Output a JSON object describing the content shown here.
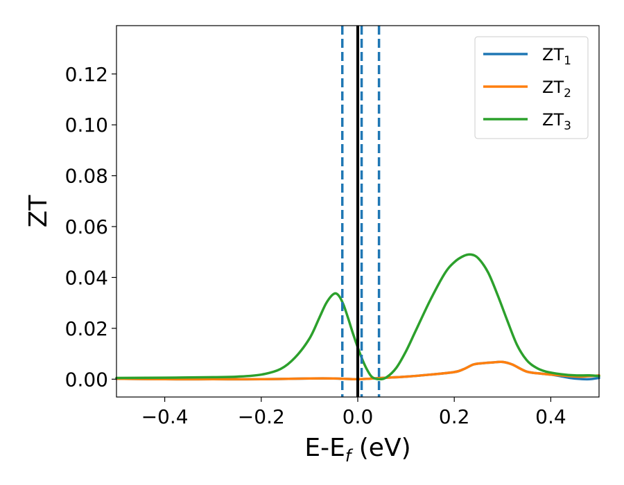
{
  "chart_data": {
    "type": "line",
    "xlabel": "E-E",
    "xlabel_sub": "f",
    "xlabel_unit": " (eV)",
    "ylabel": "ZT",
    "xlim": [
      -0.5,
      0.5
    ],
    "ylim": [
      -0.007,
      0.139
    ],
    "xticks": [
      -0.4,
      -0.2,
      0.0,
      0.2,
      0.4
    ],
    "xtick_labels": [
      "−0.4",
      "−0.2",
      "0.0",
      "0.2",
      "0.4"
    ],
    "yticks": [
      0.0,
      0.02,
      0.04,
      0.06,
      0.08,
      0.1,
      0.12
    ],
    "ytick_labels": [
      "0.00",
      "0.02",
      "0.04",
      "0.06",
      "0.08",
      "0.10",
      "0.12"
    ],
    "legend_position": "top-right",
    "grid": false,
    "vertical_lines": [
      {
        "x": 0.0,
        "style": "solid",
        "color": "#000000"
      },
      {
        "x": -0.032,
        "style": "dashed",
        "color": "#1f77b4"
      },
      {
        "x": 0.008,
        "style": "dashed",
        "color": "#1f77b4"
      },
      {
        "x": 0.044,
        "style": "dashed",
        "color": "#1f77b4"
      }
    ],
    "series": [
      {
        "name": "ZT",
        "sub": "1",
        "color": "#1f77b4",
        "x": [
          -0.5,
          -0.4,
          -0.3,
          -0.2,
          -0.1,
          -0.05,
          0.0,
          0.05,
          0.1,
          0.15,
          0.2,
          0.22,
          0.24,
          0.26,
          0.28,
          0.3,
          0.32,
          0.35,
          0.38,
          0.4,
          0.42,
          0.44,
          0.46,
          0.48,
          0.5
        ],
        "y": [
          0.0002,
          0.0,
          0.0,
          0.0,
          0.0003,
          0.0003,
          0.0,
          0.0005,
          0.001,
          0.0018,
          0.0028,
          0.004,
          0.0058,
          0.0063,
          0.0066,
          0.0068,
          0.0058,
          0.003,
          0.0022,
          0.0018,
          0.0012,
          0.0005,
          0.0001,
          0.0,
          0.0005
        ]
      },
      {
        "name": "ZT",
        "sub": "2",
        "color": "#ff7f0e",
        "x": [
          -0.5,
          -0.4,
          -0.3,
          -0.2,
          -0.1,
          -0.05,
          0.0,
          0.05,
          0.1,
          0.15,
          0.2,
          0.22,
          0.24,
          0.26,
          0.28,
          0.3,
          0.32,
          0.35,
          0.38,
          0.4,
          0.42,
          0.44,
          0.46,
          0.48,
          0.5
        ],
        "y": [
          0.0002,
          0.0,
          0.0,
          0.0,
          0.0003,
          0.0003,
          0.0,
          0.0005,
          0.001,
          0.0018,
          0.0028,
          0.004,
          0.0058,
          0.0063,
          0.0066,
          0.0068,
          0.0058,
          0.003,
          0.0022,
          0.0018,
          0.0015,
          0.0012,
          0.001,
          0.0012,
          0.0015
        ]
      },
      {
        "name": "ZT",
        "sub": "3",
        "color": "#2ca02c",
        "x": [
          -0.5,
          -0.4,
          -0.3,
          -0.25,
          -0.2,
          -0.16,
          -0.13,
          -0.1,
          -0.08,
          -0.065,
          -0.05,
          -0.04,
          -0.03,
          -0.02,
          -0.01,
          0.0,
          0.01,
          0.02,
          0.03,
          0.045,
          0.06,
          0.08,
          0.1,
          0.12,
          0.15,
          0.18,
          0.2,
          0.22,
          0.235,
          0.25,
          0.27,
          0.29,
          0.31,
          0.33,
          0.35,
          0.37,
          0.39,
          0.42,
          0.45,
          0.48,
          0.5
        ],
        "y": [
          0.0005,
          0.0006,
          0.0008,
          0.001,
          0.0018,
          0.004,
          0.0085,
          0.016,
          0.024,
          0.03,
          0.0335,
          0.033,
          0.0295,
          0.024,
          0.018,
          0.0125,
          0.0075,
          0.0035,
          0.0008,
          0.0,
          0.0008,
          0.0045,
          0.011,
          0.019,
          0.031,
          0.0415,
          0.046,
          0.0485,
          0.049,
          0.0475,
          0.042,
          0.033,
          0.023,
          0.0135,
          0.0075,
          0.0045,
          0.003,
          0.002,
          0.0015,
          0.0015,
          0.0012
        ]
      }
    ]
  }
}
